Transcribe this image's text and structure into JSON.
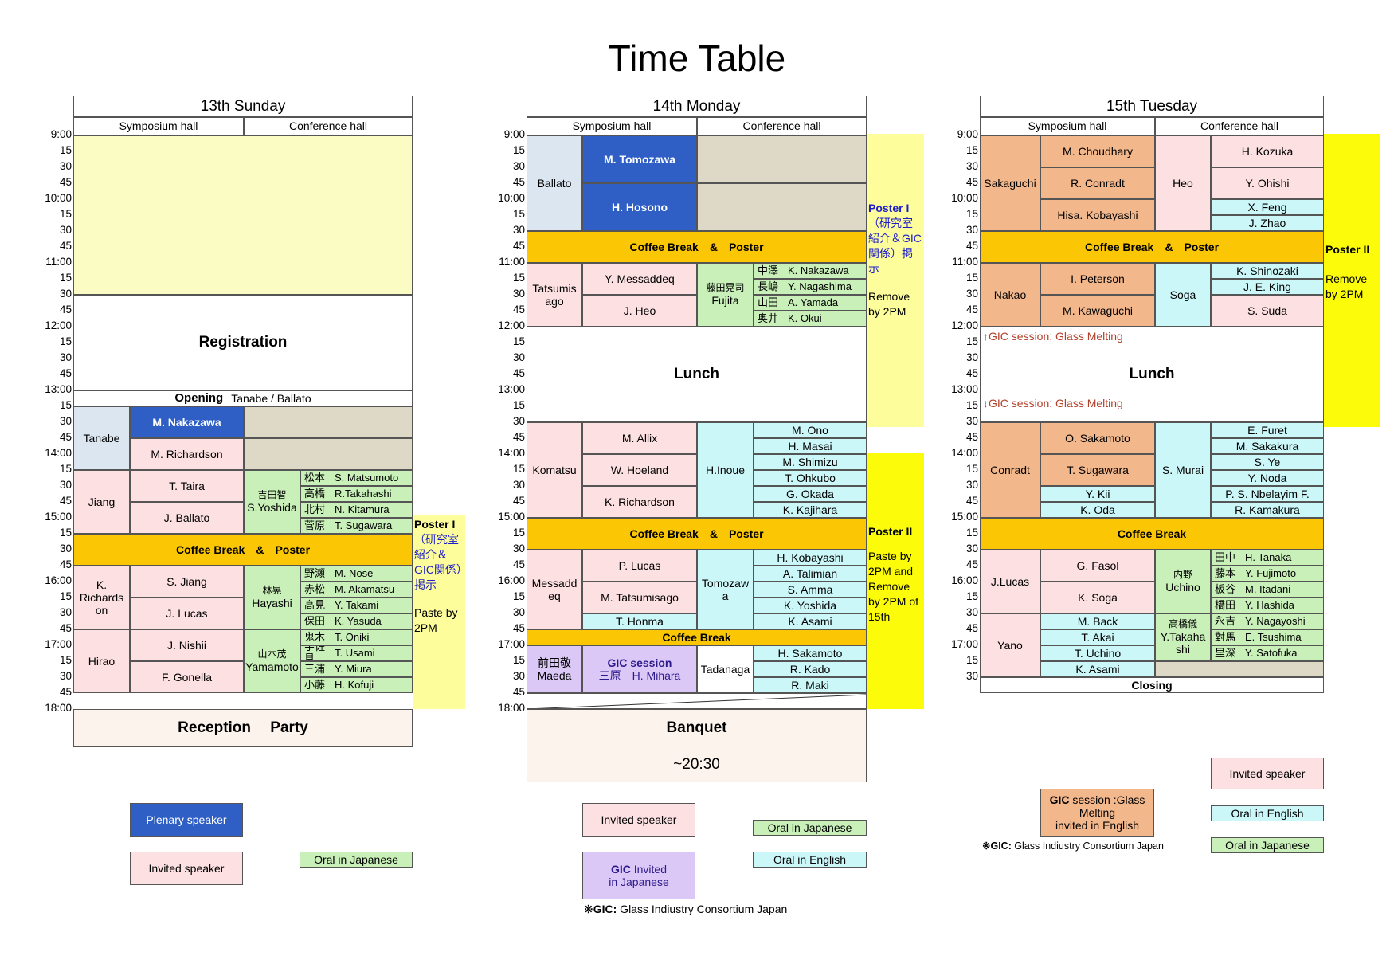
{
  "title": "Time Table",
  "days": {
    "sun": {
      "header": "13th Sunday",
      "hall1": "Symposium hall",
      "hall2": "Conference hall",
      "times": [
        "9:00",
        "15",
        "30",
        "45",
        "10:00",
        "15",
        "30",
        "45",
        "11:00",
        "15",
        "30",
        "45",
        "12:00",
        "15",
        "30",
        "45",
        "13:00",
        "15",
        "30",
        "45",
        "14:00",
        "15",
        "30",
        "45",
        "15:00",
        "15",
        "30",
        "45",
        "16:00",
        "15",
        "30",
        "45",
        "17:00",
        "15",
        "30",
        "45",
        "18:00"
      ],
      "registration": "Registration",
      "opening": "Opening",
      "opening_names": "Tanabe / Ballato",
      "chairs": [
        "Tanabe",
        "Jiang",
        "K.\nRichards\non",
        "Hirao"
      ],
      "talks": [
        "M. Nakazawa",
        "M. Richardson",
        "T. Taira",
        "J. Ballato",
        "S. Jiang",
        "J. Lucas",
        "J. Nishii",
        "F. Gonella"
      ],
      "coffee": "Coffee Break　&　Poster",
      "conf_chairs": [
        {
          "jp": "吉田智",
          "en": "S.Yoshida"
        },
        {
          "jp": "林晃",
          "en": "Hayashi"
        },
        {
          "jp": "山本茂",
          "en": "Yamamoto"
        }
      ],
      "jp_talks": [
        {
          "jp": "松本",
          "en": "S. Matsumoto"
        },
        {
          "jp": "高橋",
          "en": "R.Takahashi"
        },
        {
          "jp": "北村",
          "en": "N. Kitamura"
        },
        {
          "jp": "菅原",
          "en": "T. Sugawara"
        },
        {
          "jp": "野瀬",
          "en": "M. Nose"
        },
        {
          "jp": "赤松",
          "en": "M. Akamatsu"
        },
        {
          "jp": "高見",
          "en": "Y. Takami"
        },
        {
          "jp": "保田",
          "en": "K. Yasuda"
        },
        {
          "jp": "鬼木",
          "en": "T. Oniki"
        },
        {
          "jp": "宇佐見",
          "en": "T. Usami"
        },
        {
          "jp": "三浦",
          "en": "Y. Miura"
        },
        {
          "jp": "小藤",
          "en": "H. Kofuji"
        }
      ],
      "poster": {
        "title": "Poster I",
        "desc": "（研究室紹介＆GIC関係）掲示",
        "remove": "Paste by 2PM"
      },
      "reception": "Reception　 Party"
    },
    "mon": {
      "header": "14th Monday",
      "hall1": "Symposium hall",
      "hall2": "Conference hall",
      "times": [
        "9:00",
        "15",
        "30",
        "45",
        "10:00",
        "15",
        "30",
        "45",
        "11:00",
        "15",
        "30",
        "45",
        "12:00",
        "15",
        "30",
        "45",
        "13:00",
        "15",
        "30",
        "45",
        "14:00",
        "15",
        "30",
        "45",
        "15:00",
        "15",
        "30",
        "45",
        "16:00",
        "15",
        "30",
        "45",
        "17:00",
        "15",
        "30",
        "45",
        "18:00"
      ],
      "chairs": [
        "Ballato",
        "Tatsumis\nago",
        "Komatsu",
        "Messadd\neq",
        "前田敬\nMaeda"
      ],
      "talks": [
        "M. Tomozawa",
        "H. Hosono",
        "Y. Messaddeq",
        "J. Heo",
        "M. Allix",
        "W. Hoeland",
        "K. Richardson",
        "P. Lucas",
        "M. Tatsumisago",
        "T. Honma"
      ],
      "coffee1": "Coffee Break　&　Poster",
      "coffee2": "Coffee Break　&　Poster",
      "coffee3": "Coffee Break",
      "lunch": "Lunch",
      "gic_title": "GIC session",
      "gic_names": "三原　H. Mihara",
      "conf_chairs": [
        {
          "jp": "藤田晃司",
          "en": "Fujita"
        },
        {
          "jp": "",
          "en": "H.Inoue"
        },
        {
          "jp": "",
          "en": "Tomozaw\na"
        },
        {
          "jp": "",
          "en": "Tadanaga"
        }
      ],
      "jp_talks": [
        {
          "jp": "中澤",
          "en": "K. Nakazawa"
        },
        {
          "jp": "長嶋",
          "en": "Y. Nagashima"
        },
        {
          "jp": "山田",
          "en": "A. Yamada"
        },
        {
          "jp": "奥井",
          "en": "K. Okui"
        }
      ],
      "en_talks": [
        "M. Ono",
        "H. Masai",
        "M. Shimizu",
        "T. Ohkubo",
        "G. Okada",
        "K. Kajihara",
        "H. Kobayashi",
        "A. Talimian",
        "S. Amma",
        "K. Yoshida",
        "K. Asami",
        "H. Sakamoto",
        "R. Kado",
        "R. Maki"
      ],
      "poster1": {
        "title": "Poster I",
        "desc": "（研究室紹介＆GIC関係）掲示",
        "remove": "Remove by 2PM"
      },
      "poster2": {
        "title": "Poster II",
        "desc": "Paste by 2PM and Remove by 2PM of 15th"
      },
      "banquet": "Banquet",
      "banquet_time": "~20:30"
    },
    "tue": {
      "header": "15th Tuesday",
      "hall1": "Symposium hall",
      "hall2": "Conference hall",
      "times": [
        "9:00",
        "15",
        "30",
        "45",
        "10:00",
        "15",
        "30",
        "45",
        "11:00",
        "15",
        "30",
        "45",
        "12:00",
        "15",
        "30",
        "45",
        "13:00",
        "15",
        "30",
        "45",
        "14:00",
        "15",
        "30",
        "45",
        "15:00",
        "15",
        "30",
        "45",
        "16:00",
        "15",
        "30",
        "45",
        "17:00",
        "15",
        "30"
      ],
      "chairs": [
        "Sakaguchi",
        "Nakao",
        "Conradt",
        "J.Lucas",
        "Yano"
      ],
      "talks": [
        "M. Choudhary",
        "R. Conradt",
        "Hisa. Kobayashi",
        "I. Peterson",
        "M. Kawaguchi",
        "O. Sakamoto",
        "T. Sugawara",
        "G. Fasol",
        "K. Soga"
      ],
      "conf_chairs": [
        "Heo",
        "Soga",
        "S. Murai"
      ],
      "conf_talks": [
        "H. Kozuka",
        "Y. Ohishi",
        "S. Suda"
      ],
      "en_talks": [
        "X. Feng",
        "J. Zhao",
        "K. Shinozaki",
        "J. E. King",
        "E. Furet",
        "M. Sakakura",
        "S. Ye",
        "Y. Noda",
        "P. S. Nbelayim F.",
        "R. Kamakura"
      ],
      "sym_en": [
        "Y. Kii",
        "K. Oda",
        "M. Back",
        "T. Akai",
        "T. Uchino",
        "K. Asami"
      ],
      "jp_chairs": [
        {
          "jp": "内野",
          "en": "Uchino"
        },
        {
          "jp": "高橋儀",
          "en": "Y.Takaha\nshi"
        }
      ],
      "jp_talks": [
        {
          "jp": "田中",
          "en": "H. Tanaka"
        },
        {
          "jp": "藤本",
          "en": "Y. Fujimoto"
        },
        {
          "jp": "板谷",
          "en": "M. Itadani"
        },
        {
          "jp": "橋田",
          "en": "Y. Hashida"
        },
        {
          "jp": "永吉",
          "en": "Y. Nagayoshi"
        },
        {
          "jp": "對馬",
          "en": "E. Tsushima"
        },
        {
          "jp": "里深",
          "en": "Y. Satofuka"
        }
      ],
      "coffee1": "Coffee Break　&　Poster",
      "coffee2": "Coffee Break",
      "lunch": "Lunch",
      "gic_up": "↑GIC session: Glass Melting",
      "gic_down": "↓GIC session: Glass Melting",
      "closing": "Closing",
      "poster2": {
        "title": "Poster II",
        "desc": "Remove by 2PM"
      }
    }
  },
  "legend": {
    "sun": {
      "plenary": "Plenary speaker",
      "invited": "Invited speaker",
      "oral_jp": "Oral in Japanese"
    },
    "mon": {
      "invited": "Invited speaker",
      "oral_jp": "Oral in Japanese",
      "oral_en": "Oral in English",
      "gic_invited_bold": "GIC",
      "gic_invited_rest": " Invited\nin Japanese",
      "note_bold": "※GIC:",
      "note_rest": " Glass Indiustry Consortium Japan"
    },
    "tue": {
      "gic_bold": "GIC",
      "gic_rest": " session :Glass\nMelting\ninvited in English",
      "note_bold": "※GIC:",
      "note_rest": " Glass Indiustry Consortium Japan",
      "invited": "Invited speaker",
      "oral_en": "Oral in English",
      "oral_jp": "Oral in Japanese"
    }
  },
  "colors": {
    "plenary": "#2f5fc4",
    "invited": "#fde0e2",
    "oral_jp": "#c8f0b8",
    "oral_en": "#ccf7f9",
    "gic_en": "#f3b78c",
    "gic_jp": "#dcc8f7",
    "coffee": "#fbc704",
    "poster1": "#fdfd9c",
    "poster2": "#fcfc0a"
  }
}
